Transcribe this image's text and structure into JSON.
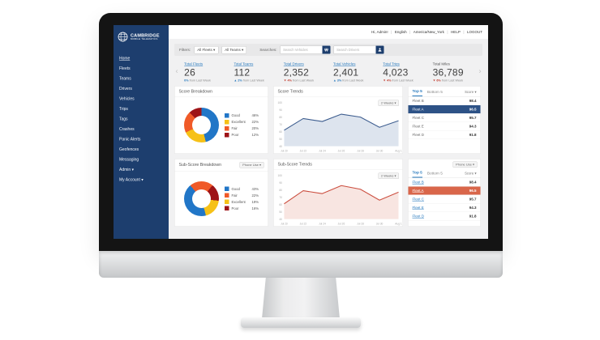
{
  "ui": {
    "separator": "|",
    "chevron_left": "‹",
    "chevron_right": "›"
  },
  "brand": {
    "line1": "CAMBRIDGE",
    "line2": "MOBILE TELEMATICS"
  },
  "topbar": {
    "items": [
      "Hi, Admin!",
      "English",
      "America/New_York",
      "HELP",
      "LOGOUT"
    ]
  },
  "sidebar": {
    "items": [
      "Home",
      "Fleets",
      "Teams",
      "Drivers",
      "Vehicles",
      "Trips",
      "Tags",
      "Crashes",
      "Panic Alerts",
      "Geofences",
      "Messaging",
      "Admin ▾",
      "My Account ▾"
    ]
  },
  "filters": {
    "filters_label": "Filters:",
    "fleet_dropdown": "All Fleets ▾",
    "team_dropdown": "All Teams ▾",
    "searches_label": "Searches:",
    "vehicle_placeholder": "Search Vehicles",
    "driver_placeholder": "Search Drivers"
  },
  "stats": {
    "items": [
      {
        "label": "Total Fleets",
        "value": "26",
        "change": "0%",
        "note": "from Last Week"
      },
      {
        "label": "Total Teams",
        "value": "112",
        "change": "▲ 2%",
        "note": "from Last Week"
      },
      {
        "label": "Total Drivers",
        "value": "2,352",
        "change": "▼ 4%",
        "note": "from Last Week"
      },
      {
        "label": "Total Vehicles",
        "value": "2,401",
        "change": "▲ 3%",
        "note": "from Last Week"
      },
      {
        "label": "Total Trips",
        "value": "4,023",
        "change": "▼ 4%",
        "note": "from Last Week"
      },
      {
        "label": "Total Miles",
        "value": "36,789",
        "change": "▼ 6%",
        "note": "from Last Week"
      }
    ]
  },
  "cards": {
    "score_breakdown": {
      "title": "Score Breakdown"
    },
    "score_trends": {
      "title": "Score Trends",
      "range_dropdown": "2 Weeks ▾"
    },
    "sub_score_breakdown": {
      "title": "Sub-Score Breakdown",
      "metric_dropdown": "Phone Use ▾"
    },
    "sub_score_trends": {
      "title": "Sub-Score Trends",
      "range_dropdown": "2 Weeks ▾"
    },
    "fleet_list_top": {
      "tab_top": "Top 5",
      "tab_bottom": "Bottom 5",
      "score_header": "Score ▾",
      "rows": [
        {
          "name": "Fleet B",
          "score": "98.4"
        },
        {
          "name": "Fleet A",
          "score": "96.5"
        },
        {
          "name": "Fleet C",
          "score": "95.7"
        },
        {
          "name": "Fleet E",
          "score": "94.3"
        },
        {
          "name": "Fleet D",
          "score": "91.8"
        }
      ],
      "highlight_index": 1,
      "highlight_color": "#2d5286",
      "name_links": false
    },
    "fleet_list_sub": {
      "metric_dropdown": "Phone Use ▾",
      "tab_top": "Top 5",
      "tab_bottom": "Bottom 5",
      "score_header": "Score ▾",
      "rows": [
        {
          "name": "Fleet B",
          "score": "98.4"
        },
        {
          "name": "Fleet A",
          "score": "96.5"
        },
        {
          "name": "Fleet C",
          "score": "95.7"
        },
        {
          "name": "Fleet E",
          "score": "94.3"
        },
        {
          "name": "Fleet D",
          "score": "91.8"
        }
      ],
      "highlight_index": 1,
      "highlight_color": "#d9664a",
      "name_links": true
    }
  },
  "chart_data": [
    {
      "type": "pie",
      "title": "Score Breakdown",
      "start_deg": 0,
      "segments": [
        {
          "label": "Good",
          "value_pct": 46,
          "display": "46%",
          "color": "#2176c7"
        },
        {
          "label": "Excellent",
          "value_pct": 22,
          "display": "22%",
          "color": "#f6c117"
        },
        {
          "label": "Fair",
          "value_pct": 20,
          "display": "20%",
          "color": "#f05a28"
        },
        {
          "label": "Poor",
          "value_pct": 12,
          "display": "12%",
          "color": "#9e1317"
        }
      ],
      "legend_order": [
        "Good",
        "Excellent",
        "Fair",
        "Poor"
      ]
    },
    {
      "type": "line",
      "title": "Score Trends",
      "x": [
        "Jul 20",
        "Jul 22",
        "Jul 24",
        "Jul 26",
        "Jul 28",
        "Jul 30",
        "Aug 1"
      ],
      "values": [
        62,
        78,
        74,
        84,
        80,
        66,
        75
      ],
      "ylim": [
        40,
        100
      ],
      "yticks": [
        100,
        90,
        80,
        70,
        60,
        50,
        40
      ],
      "line_color": "#3d5d8f",
      "fill_color": "#dde4ee",
      "grid": false,
      "legend_position": "none"
    },
    {
      "type": "pie",
      "title": "Sub-Score Breakdown (Phone Use)",
      "start_deg": -40,
      "segments": [
        {
          "label": "Fair",
          "value_pct": 22,
          "display": "22%",
          "color": "#f05a28"
        },
        {
          "label": "Poor",
          "value_pct": 16,
          "display": "16%",
          "color": "#9e1317"
        },
        {
          "label": "Excellent",
          "value_pct": 19,
          "display": "19%",
          "color": "#f6c117"
        },
        {
          "label": "Good",
          "value_pct": 43,
          "display": "43%",
          "color": "#2176c7"
        }
      ],
      "legend_order": [
        "Good",
        "Fair",
        "Excellent",
        "Poor"
      ]
    },
    {
      "type": "line",
      "title": "Sub-Score Trends (Phone Use)",
      "x": [
        "Jul 20",
        "Jul 22",
        "Jul 24",
        "Jul 26",
        "Jul 28",
        "Jul 30",
        "Aug 1"
      ],
      "values": [
        61,
        79,
        75,
        86,
        81,
        66,
        77
      ],
      "ylim": [
        40,
        100
      ],
      "yticks": [
        100,
        90,
        80,
        70,
        60,
        50,
        40
      ],
      "line_color": "#cb4d3e",
      "fill_color": "#f8e5e1",
      "grid": false,
      "legend_position": "none"
    }
  ],
  "colors": {
    "sidebar_navy": "#1d3e6e",
    "link_blue": "#2779bd",
    "up_blue": "#2779bd",
    "down_red": "#c0392b",
    "highlight_navy": "#2d5286",
    "highlight_orange": "#d9664a"
  }
}
